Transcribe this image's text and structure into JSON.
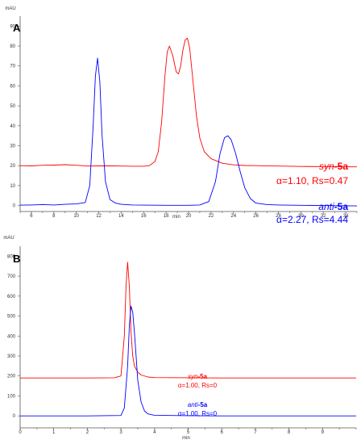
{
  "chart_data": [
    {
      "panel_label": "A",
      "type": "line",
      "ylabel": "mAU",
      "xlabel": "min",
      "xlim": [
        5,
        35
      ],
      "ylim": [
        -3,
        95
      ],
      "x_ticks": [
        6,
        8,
        10,
        12,
        14,
        16,
        18,
        20,
        22,
        24,
        26,
        28,
        30,
        32,
        34
      ],
      "y_ticks": [
        0,
        10,
        20,
        30,
        40,
        50,
        60,
        70,
        80,
        90
      ],
      "series": [
        {
          "color": "#ff0000",
          "x": [
            5.0,
            6.0,
            7.0,
            8.0,
            9.0,
            10.0,
            11.0,
            12.0,
            13.0,
            14.0,
            15.0,
            16.0,
            16.5,
            17.0,
            17.3,
            17.6,
            17.9,
            18.1,
            18.3,
            18.6,
            18.9,
            19.1,
            19.3,
            19.5,
            19.7,
            19.9,
            20.1,
            20.4,
            20.7,
            21.0,
            21.4,
            22.0,
            23.0,
            24.0,
            25.0,
            26.0,
            28.0,
            30.0,
            32.0,
            35.0
          ],
          "y": [
            20.0,
            19.9,
            20.2,
            20.3,
            20.5,
            20.2,
            19.8,
            19.9,
            19.9,
            19.8,
            19.7,
            19.7,
            20.0,
            22.0,
            27.0,
            42.0,
            65.0,
            77.0,
            80.0,
            75.0,
            67.0,
            66.0,
            70.0,
            78.0,
            83.0,
            84.0,
            79.0,
            62.0,
            45.0,
            34.0,
            27.0,
            23.5,
            21.2,
            20.4,
            20.1,
            20.0,
            19.8,
            19.6,
            19.5,
            19.4
          ],
          "label_italic": "syn",
          "label_bold": "-5a",
          "stats_text": "α=1.10, Rs=0.47"
        },
        {
          "color": "#0000ff",
          "x": [
            5.0,
            6.0,
            7.0,
            8.0,
            9.0,
            10.0,
            10.8,
            11.2,
            11.5,
            11.7,
            11.9,
            12.1,
            12.3,
            12.6,
            13.0,
            13.5,
            14.0,
            15.0,
            16.0,
            18.0,
            20.0,
            21.0,
            21.8,
            22.4,
            22.8,
            23.2,
            23.5,
            23.8,
            24.2,
            24.6,
            25.0,
            25.5,
            26.0,
            27.0,
            28.0,
            30.0,
            32.0,
            35.0
          ],
          "y": [
            0.2,
            0.3,
            0.5,
            0.3,
            0.6,
            0.8,
            1.5,
            10.0,
            40.0,
            65.0,
            74.0,
            62.0,
            35.0,
            12.0,
            3.0,
            1.2,
            0.6,
            0.3,
            0.2,
            0.1,
            0.1,
            0.3,
            2.0,
            12.0,
            26.0,
            34.0,
            35.0,
            33.0,
            26.0,
            17.0,
            9.0,
            3.5,
            1.2,
            0.5,
            0.3,
            0.1,
            0.0,
            -0.2
          ],
          "label_italic": "anti",
          "label_bold": "-5a",
          "stats_text": "α=2.27, Rs=4.44"
        }
      ]
    },
    {
      "panel_label": "B",
      "type": "line",
      "ylabel": "mAU",
      "xlabel": "min",
      "xlim": [
        0,
        10
      ],
      "ylim": [
        -60,
        850
      ],
      "x_ticks": [
        0,
        1,
        2,
        3,
        4,
        5,
        6,
        7,
        8,
        9
      ],
      "y_ticks": [
        0,
        100,
        200,
        300,
        400,
        500,
        600,
        700,
        800
      ],
      "series": [
        {
          "color": "#ff0000",
          "x": [
            0.0,
            1.0,
            2.0,
            2.8,
            3.0,
            3.1,
            3.15,
            3.2,
            3.25,
            3.3,
            3.35,
            3.4,
            3.5,
            3.6,
            3.8,
            4.0,
            5.0,
            6.0,
            8.0,
            10.0
          ],
          "y": [
            190.0,
            190.0,
            190.0,
            191.0,
            200.0,
            400.0,
            650.0,
            770.0,
            650.0,
            420.0,
            300.0,
            250.0,
            220.0,
            205.0,
            195.0,
            192.0,
            191.0,
            190.0,
            190.0,
            190.0
          ],
          "label_italic": "syn",
          "label_bold": "-5a",
          "stats_text": "α=1.00, Rs=0"
        },
        {
          "color": "#0000ff",
          "x": [
            0.0,
            1.0,
            2.0,
            3.0,
            3.1,
            3.2,
            3.25,
            3.3,
            3.35,
            3.4,
            3.45,
            3.5,
            3.6,
            3.7,
            3.8,
            4.0,
            5.0,
            6.0,
            8.0,
            10.0
          ],
          "y": [
            0.0,
            0.0,
            0.0,
            2.0,
            40.0,
            250.0,
            450.0,
            550.0,
            520.0,
            420.0,
            300.0,
            180.0,
            70.0,
            25.0,
            10.0,
            3.0,
            1.0,
            0.0,
            0.0,
            0.0
          ],
          "label_italic": "anti",
          "label_bold": "-5a",
          "stats_text": "α=1.00, Rs=0"
        }
      ]
    }
  ]
}
